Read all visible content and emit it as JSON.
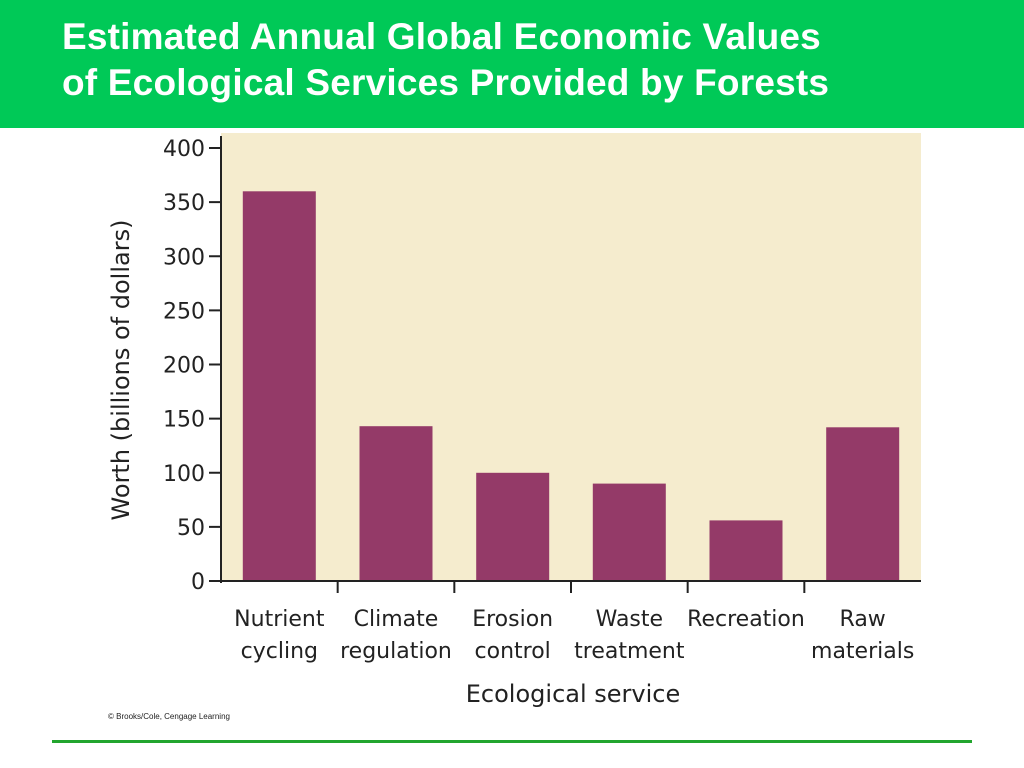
{
  "header": {
    "title_line1": "Estimated Annual Global Economic Values",
    "title_line2": "of Ecological Services Provided by Forests"
  },
  "colors": {
    "header_bg": "#00c957",
    "plot_bg": "#f5ecce",
    "bar": "#943a68",
    "rule": "#22a52e"
  },
  "credit": "© Brooks/Cole, Cengage Learning",
  "chart_data": {
    "type": "bar",
    "categories": [
      [
        "Nutrient",
        "cycling"
      ],
      [
        "Climate",
        "regulation"
      ],
      [
        "Erosion",
        "control"
      ],
      [
        "Waste",
        "treatment"
      ],
      [
        "Recreation"
      ],
      [
        "Raw",
        "materials"
      ]
    ],
    "values": [
      360,
      143,
      100,
      90,
      56,
      142
    ],
    "title": "Estimated Annual Global Economic Values of Ecological Services Provided by Forests",
    "xlabel": "Ecological service",
    "ylabel": "Worth (billions of dollars)",
    "ylim": [
      0,
      400
    ],
    "yticks": [
      "0",
      "50",
      "100",
      "150",
      "200",
      "250",
      "300",
      "350",
      "400"
    ],
    "grid": false
  }
}
